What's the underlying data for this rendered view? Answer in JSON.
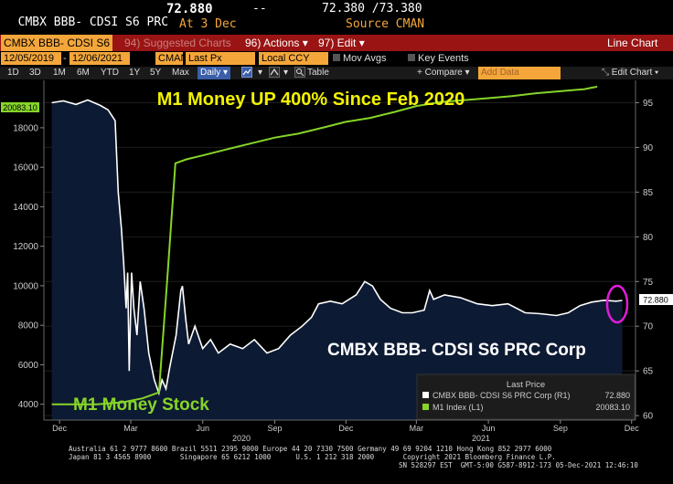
{
  "header": {
    "ticker": "CMBX BBB- CDSI S6 PRC",
    "price": "72.880",
    "change": "--",
    "bid_ask": "72.380 /73.380",
    "at_label": "At 3 Dec",
    "source": "Source CMAN"
  },
  "toolbar": {
    "security": "CMBX BBB- CDSI S6",
    "suggested": "94) Suggested Charts",
    "actions": "96) Actions ▾",
    "edit": "97) Edit ▾",
    "view": "Line Chart"
  },
  "inputs": {
    "start_date": "12/05/2019",
    "end_date": "12/06/2021",
    "source": "CMAN",
    "field": "Last Px",
    "currency": "Local CCY",
    "mov_avgs": "Mov Avgs",
    "key_events": "Key Events"
  },
  "tools": {
    "periods": [
      "1D",
      "3D",
      "1M",
      "6M",
      "YTD",
      "1Y",
      "5Y",
      "Max"
    ],
    "frequency": "Daily ▾",
    "table": "Table",
    "compare": "+ Compare ▾",
    "add_data": "Add Data",
    "edit_chart": "Edit Chart ▾"
  },
  "colors": {
    "cmbx_fill": "#0d1a33",
    "cmbx_line": "#ffffff",
    "m1_line": "#86d428",
    "highlight_circle": "#e01cd8",
    "accent_orange": "#f4a63a",
    "toolbar_red": "#9a1414"
  },
  "chart_data": {
    "type": "line",
    "annotations": {
      "top": "M1 Money UP 400% Since Feb 2020",
      "bottom_left": "M1 Money Stock",
      "bottom_right": "CMBX BBB- CDSI S6 PRC Corp"
    },
    "x_ticks": [
      "Dec",
      "Mar",
      "Jun",
      "Sep",
      "Dec",
      "Mar",
      "Jun",
      "Sep",
      "Dec"
    ],
    "year_labels": [
      "2020",
      "2021"
    ],
    "left_axis": {
      "ticks": [
        4000,
        6000,
        8000,
        10000,
        12000,
        14000,
        16000,
        18000
      ],
      "ylim": [
        3200,
        20400
      ],
      "last_label": "20083.10",
      "series": "M1 Index (L1)"
    },
    "right_axis": {
      "ticks": [
        60,
        65,
        70,
        75,
        80,
        85,
        90,
        95
      ],
      "ylim": [
        59.5,
        97.5
      ],
      "last_label": "72.880",
      "series": "CMBX BBB- CDSI S6 PRC Corp (R1)"
    },
    "legend": {
      "title": "Last Price",
      "entries": [
        {
          "name": "CMBX BBB- CDSI S6 PRC Corp (R1)",
          "value": "72.880",
          "color": "#ffffff"
        },
        {
          "name": "M1 Index (L1)",
          "value": "20083.10",
          "color": "#86d428"
        }
      ]
    },
    "series": [
      {
        "name": "CMBX BBB- CDSI S6 PRC Corp",
        "axis": "right",
        "points": [
          [
            "2019-12-05",
            95.0
          ],
          [
            "2019-12-20",
            95.2
          ],
          [
            "2020-01-05",
            94.8
          ],
          [
            "2020-01-20",
            95.3
          ],
          [
            "2020-02-05",
            94.7
          ],
          [
            "2020-02-15",
            94.2
          ],
          [
            "2020-02-24",
            93.0
          ],
          [
            "2020-02-28",
            85.0
          ],
          [
            "2020-03-03",
            81.0
          ],
          [
            "2020-03-06",
            77.0
          ],
          [
            "2020-03-09",
            72.0
          ],
          [
            "2020-03-11",
            76.0
          ],
          [
            "2020-03-13",
            65.0
          ],
          [
            "2020-03-16",
            76.0
          ],
          [
            "2020-03-19",
            72.0
          ],
          [
            "2020-03-23",
            69.0
          ],
          [
            "2020-03-27",
            75.0
          ],
          [
            "2020-04-01",
            72.0
          ],
          [
            "2020-04-07",
            67.0
          ],
          [
            "2020-04-14",
            64.0
          ],
          [
            "2020-04-20",
            62.5
          ],
          [
            "2020-04-24",
            64.0
          ],
          [
            "2020-04-29",
            63.0
          ],
          [
            "2020-05-04",
            65.5
          ],
          [
            "2020-05-12",
            69.0
          ],
          [
            "2020-05-18",
            74.0
          ],
          [
            "2020-05-20",
            74.5
          ],
          [
            "2020-05-24",
            71.0
          ],
          [
            "2020-05-28",
            68.0
          ],
          [
            "2020-06-05",
            70.0
          ],
          [
            "2020-06-15",
            67.5
          ],
          [
            "2020-06-25",
            68.5
          ],
          [
            "2020-07-05",
            67.0
          ],
          [
            "2020-07-20",
            68.0
          ],
          [
            "2020-08-05",
            67.5
          ],
          [
            "2020-08-20",
            68.5
          ],
          [
            "2020-09-05",
            67.0
          ],
          [
            "2020-09-20",
            67.5
          ],
          [
            "2020-10-05",
            69.0
          ],
          [
            "2020-10-20",
            70.0
          ],
          [
            "2020-11-01",
            71.0
          ],
          [
            "2020-11-10",
            72.5
          ],
          [
            "2020-11-25",
            72.8
          ],
          [
            "2020-12-10",
            72.5
          ],
          [
            "2020-12-28",
            73.5
          ],
          [
            "2021-01-08",
            75.0
          ],
          [
            "2021-01-18",
            74.5
          ],
          [
            "2021-01-28",
            73.0
          ],
          [
            "2021-02-10",
            72.0
          ],
          [
            "2021-02-25",
            71.5
          ],
          [
            "2021-03-10",
            71.5
          ],
          [
            "2021-03-25",
            71.8
          ],
          [
            "2021-04-01",
            74.0
          ],
          [
            "2021-04-06",
            73.0
          ],
          [
            "2021-04-20",
            73.5
          ],
          [
            "2021-05-10",
            73.2
          ],
          [
            "2021-06-01",
            72.5
          ],
          [
            "2021-06-20",
            72.3
          ],
          [
            "2021-07-10",
            72.5
          ],
          [
            "2021-08-01",
            71.5
          ],
          [
            "2021-08-20",
            71.4
          ],
          [
            "2021-09-10",
            71.2
          ],
          [
            "2021-09-25",
            71.5
          ],
          [
            "2021-10-10",
            72.3
          ],
          [
            "2021-10-25",
            72.7
          ],
          [
            "2021-11-10",
            72.9
          ],
          [
            "2021-11-25",
            72.8
          ],
          [
            "2021-12-03",
            72.88
          ]
        ]
      },
      {
        "name": "M1 Index",
        "axis": "left",
        "points": [
          [
            "2019-12-05",
            4000
          ],
          [
            "2020-02-01",
            4000
          ],
          [
            "2020-03-05",
            4100
          ],
          [
            "2020-03-30",
            4300
          ],
          [
            "2020-04-20",
            4600
          ],
          [
            "2020-04-30",
            10000
          ],
          [
            "2020-05-11",
            16200
          ],
          [
            "2020-05-25",
            16400
          ],
          [
            "2020-06-15",
            16600
          ],
          [
            "2020-07-15",
            16900
          ],
          [
            "2020-08-15",
            17200
          ],
          [
            "2020-09-15",
            17500
          ],
          [
            "2020-10-15",
            17700
          ],
          [
            "2020-11-15",
            18000
          ],
          [
            "2020-12-15",
            18300
          ],
          [
            "2021-01-15",
            18500
          ],
          [
            "2021-02-15",
            18800
          ],
          [
            "2021-03-15",
            19100
          ],
          [
            "2021-04-15",
            19300
          ],
          [
            "2021-05-15",
            19400
          ],
          [
            "2021-06-15",
            19500
          ],
          [
            "2021-07-15",
            19600
          ],
          [
            "2021-08-15",
            19750
          ],
          [
            "2021-09-15",
            19850
          ],
          [
            "2021-10-15",
            19950
          ],
          [
            "2021-11-01",
            20083.1
          ]
        ]
      }
    ]
  },
  "footer": {
    "line1": "Australia 61 2 9777 8600 Brazil 5511 2395 9000 Europe 44 20 7330 7500 Germany 49 69 9204 1210 Hong Kong 852 2977 6000",
    "line2": "Japan 81 3 4565 8900       Singapore 65 6212 1000      U.S. 1 212 318 2000       Copyright 2021 Bloomberg Finance L.P.",
    "line3": "SN 528297 EST  GMT-5:00 G587-8912-173 05-Dec-2021 12:46:10"
  }
}
